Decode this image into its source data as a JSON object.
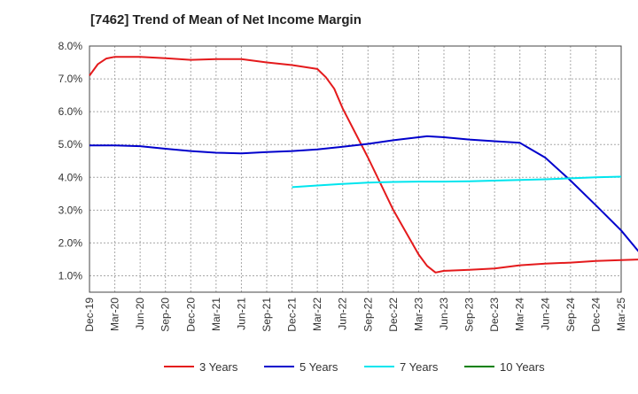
{
  "chart_data": {
    "type": "line",
    "title": "[7462]  Trend of Mean of Net Income Margin",
    "xlabel": "",
    "ylabel": "",
    "ylim": [
      0.5,
      8.0
    ],
    "y_ticks": [
      1.0,
      2.0,
      3.0,
      4.0,
      5.0,
      6.0,
      7.0,
      8.0
    ],
    "y_tick_labels": [
      "1.0%",
      "2.0%",
      "3.0%",
      "4.0%",
      "5.0%",
      "6.0%",
      "7.0%",
      "8.0%"
    ],
    "x_ticks": [
      "Dec-19",
      "Mar-20",
      "Jun-20",
      "Sep-20",
      "Dec-20",
      "Mar-21",
      "Jun-21",
      "Sep-21",
      "Dec-21",
      "Mar-22",
      "Jun-22",
      "Sep-22",
      "Dec-22",
      "Mar-23",
      "Jun-23",
      "Sep-23",
      "Dec-23",
      "Mar-24",
      "Jun-24",
      "Sep-24",
      "Dec-24",
      "Mar-25"
    ],
    "grid": true,
    "legend_position": "bottom",
    "series": [
      {
        "name": "3 Years",
        "color": "#e41a1c",
        "points": [
          [
            "Dec-19",
            7.1
          ],
          [
            "Jan-20",
            7.45
          ],
          [
            "Feb-20",
            7.62
          ],
          [
            "Mar-20",
            7.67
          ],
          [
            "Jun-20",
            7.67
          ],
          [
            "Sep-20",
            7.63
          ],
          [
            "Dec-20",
            7.58
          ],
          [
            "Mar-21",
            7.6
          ],
          [
            "Jun-21",
            7.6
          ],
          [
            "Sep-21",
            7.5
          ],
          [
            "Dec-21",
            7.42
          ],
          [
            "Mar-22",
            7.3
          ],
          [
            "Apr-22",
            7.05
          ],
          [
            "May-22",
            6.7
          ],
          [
            "Jun-22",
            6.1
          ],
          [
            "Sep-22",
            4.6
          ],
          [
            "Dec-22",
            3.0
          ],
          [
            "Mar-23",
            1.65
          ],
          [
            "Apr-23",
            1.3
          ],
          [
            "May-23",
            1.1
          ],
          [
            "Jun-23",
            1.15
          ],
          [
            "Sep-23",
            1.18
          ],
          [
            "Dec-23",
            1.22
          ],
          [
            "Mar-24",
            1.32
          ],
          [
            "Jun-24",
            1.37
          ],
          [
            "Sep-24",
            1.4
          ],
          [
            "Dec-24",
            1.45
          ],
          [
            "Mar-25",
            1.48
          ],
          [
            "Jun-25",
            1.5
          ]
        ]
      },
      {
        "name": "5 Years",
        "color": "#0000cc",
        "points": [
          [
            "Dec-19",
            4.97
          ],
          [
            "Mar-20",
            4.97
          ],
          [
            "Jun-20",
            4.95
          ],
          [
            "Sep-20",
            4.87
          ],
          [
            "Dec-20",
            4.8
          ],
          [
            "Mar-21",
            4.75
          ],
          [
            "Jun-21",
            4.73
          ],
          [
            "Sep-21",
            4.77
          ],
          [
            "Dec-21",
            4.8
          ],
          [
            "Mar-22",
            4.85
          ],
          [
            "Jun-22",
            4.93
          ],
          [
            "Sep-22",
            5.02
          ],
          [
            "Dec-22",
            5.13
          ],
          [
            "Mar-23",
            5.22
          ],
          [
            "Apr-23",
            5.25
          ],
          [
            "Jun-23",
            5.22
          ],
          [
            "Sep-23",
            5.15
          ],
          [
            "Dec-23",
            5.1
          ],
          [
            "Mar-24",
            5.05
          ],
          [
            "Apr-24",
            4.9
          ],
          [
            "Jun-24",
            4.6
          ],
          [
            "Sep-24",
            3.9
          ],
          [
            "Dec-24",
            3.15
          ],
          [
            "Mar-25",
            2.38
          ],
          [
            "Jun-25",
            1.45
          ]
        ]
      },
      {
        "name": "7 Years",
        "color": "#00e5ee",
        "points": [
          [
            "Dec-21",
            3.7
          ],
          [
            "Mar-22",
            3.75
          ],
          [
            "Jun-22",
            3.8
          ],
          [
            "Sep-22",
            3.84
          ],
          [
            "Dec-22",
            3.86
          ],
          [
            "Mar-23",
            3.87
          ],
          [
            "Jun-23",
            3.87
          ],
          [
            "Sep-23",
            3.88
          ],
          [
            "Dec-23",
            3.9
          ],
          [
            "Mar-24",
            3.92
          ],
          [
            "Jun-24",
            3.94
          ],
          [
            "Sep-24",
            3.97
          ],
          [
            "Dec-24",
            4.0
          ],
          [
            "Mar-25",
            4.02
          ]
        ]
      },
      {
        "name": "10 Years",
        "color": "#008000",
        "points": []
      }
    ]
  }
}
